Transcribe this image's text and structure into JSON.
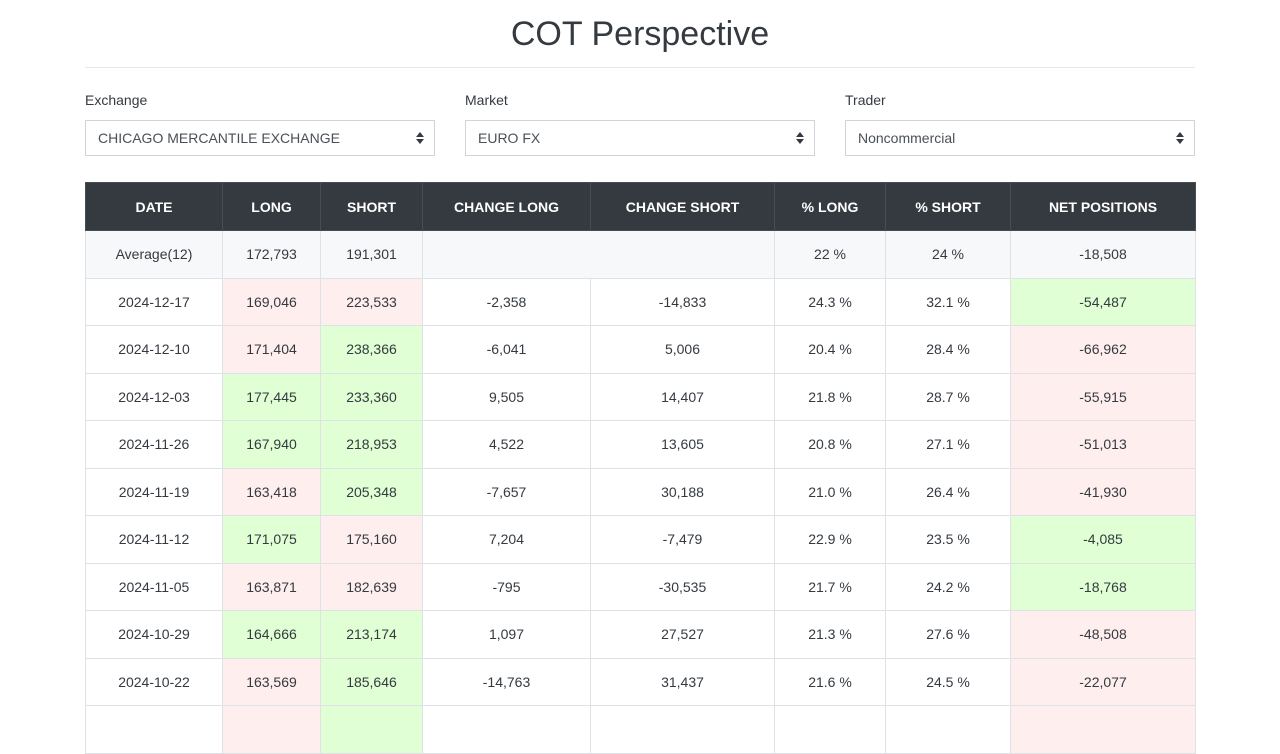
{
  "header": {
    "title": "COT Perspective"
  },
  "filters": {
    "exchange": {
      "label": "Exchange",
      "value": "CHICAGO MERCANTILE EXCHANGE"
    },
    "market": {
      "label": "Market",
      "value": "EURO FX"
    },
    "trader": {
      "label": "Trader",
      "value": "Noncommercial"
    }
  },
  "table": {
    "columns": [
      "DATE",
      "LONG",
      "SHORT",
      "CHANGE LONG",
      "CHANGE SHORT",
      "% LONG",
      "% SHORT",
      "NET POSITIONS"
    ],
    "average": {
      "label": "Average(12)",
      "long": "172,793",
      "short": "191,301",
      "pct_long": "22 %",
      "pct_short": "24 %",
      "net": "-18,508"
    },
    "rows": [
      {
        "date": "2024-12-17",
        "long": "169,046",
        "short": "223,533",
        "change_long": "-2,358",
        "change_short": "-14,833",
        "pct_long": "24.3 %",
        "pct_short": "32.1 %",
        "net": "-54,487",
        "long_state": "neg",
        "short_state": "neg",
        "net_state": "pos"
      },
      {
        "date": "2024-12-10",
        "long": "171,404",
        "short": "238,366",
        "change_long": "-6,041",
        "change_short": "5,006",
        "pct_long": "20.4 %",
        "pct_short": "28.4 %",
        "net": "-66,962",
        "long_state": "neg",
        "short_state": "pos",
        "net_state": "neg"
      },
      {
        "date": "2024-12-03",
        "long": "177,445",
        "short": "233,360",
        "change_long": "9,505",
        "change_short": "14,407",
        "pct_long": "21.8 %",
        "pct_short": "28.7 %",
        "net": "-55,915",
        "long_state": "pos",
        "short_state": "pos",
        "net_state": "neg"
      },
      {
        "date": "2024-11-26",
        "long": "167,940",
        "short": "218,953",
        "change_long": "4,522",
        "change_short": "13,605",
        "pct_long": "20.8 %",
        "pct_short": "27.1 %",
        "net": "-51,013",
        "long_state": "pos",
        "short_state": "pos",
        "net_state": "neg"
      },
      {
        "date": "2024-11-19",
        "long": "163,418",
        "short": "205,348",
        "change_long": "-7,657",
        "change_short": "30,188",
        "pct_long": "21.0 %",
        "pct_short": "26.4 %",
        "net": "-41,930",
        "long_state": "neg",
        "short_state": "pos",
        "net_state": "neg"
      },
      {
        "date": "2024-11-12",
        "long": "171,075",
        "short": "175,160",
        "change_long": "7,204",
        "change_short": "-7,479",
        "pct_long": "22.9 %",
        "pct_short": "23.5 %",
        "net": "-4,085",
        "long_state": "pos",
        "short_state": "neg",
        "net_state": "pos"
      },
      {
        "date": "2024-11-05",
        "long": "163,871",
        "short": "182,639",
        "change_long": "-795",
        "change_short": "-30,535",
        "pct_long": "21.7 %",
        "pct_short": "24.2 %",
        "net": "-18,768",
        "long_state": "neg",
        "short_state": "neg",
        "net_state": "pos"
      },
      {
        "date": "2024-10-29",
        "long": "164,666",
        "short": "213,174",
        "change_long": "1,097",
        "change_short": "27,527",
        "pct_long": "21.3 %",
        "pct_short": "27.6 %",
        "net": "-48,508",
        "long_state": "pos",
        "short_state": "pos",
        "net_state": "neg"
      },
      {
        "date": "2024-10-22",
        "long": "163,569",
        "short": "185,646",
        "change_long": "-14,763",
        "change_short": "31,437",
        "pct_long": "21.6 %",
        "pct_short": "24.5 %",
        "net": "-22,077",
        "long_state": "neg",
        "short_state": "pos",
        "net_state": "neg"
      },
      {
        "date": "",
        "long": "",
        "short": "",
        "change_long": "",
        "change_short": "",
        "pct_long": "",
        "pct_short": "",
        "net": "",
        "long_state": "neg",
        "short_state": "pos",
        "net_state": "neg"
      }
    ]
  },
  "colors": {
    "header_bg": "#343a40",
    "positive_cell": "#e0ffd4",
    "negative_cell": "#ffeeee",
    "average_row": "#f6f8fa"
  }
}
